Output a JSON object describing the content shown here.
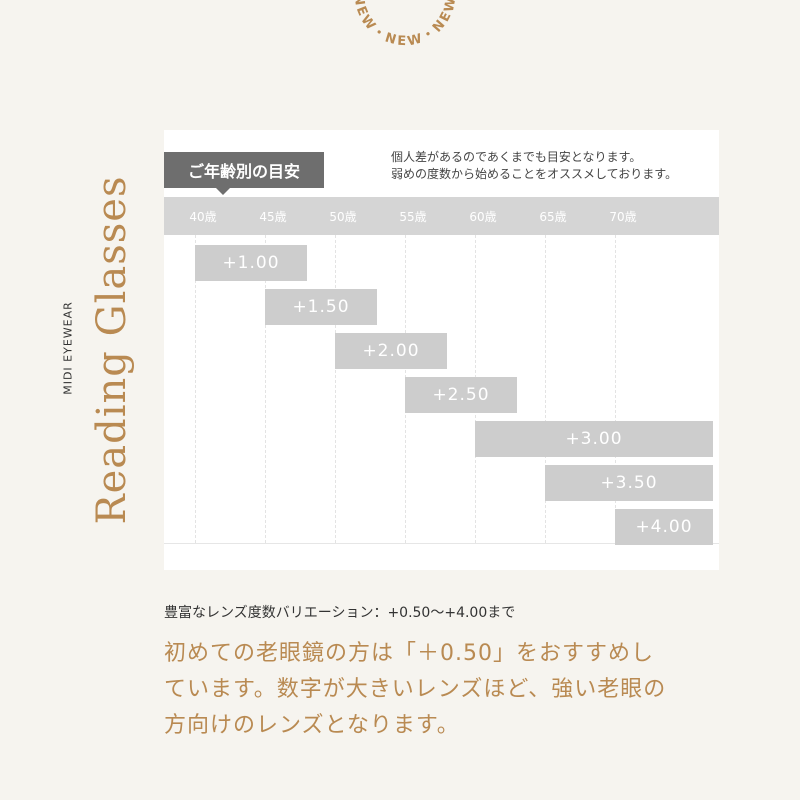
{
  "stamp": {
    "text": "NEW・NEW・NEW・NEW・"
  },
  "side": {
    "brand": "MIDI EYEWEAR",
    "title": "Reading Glasses"
  },
  "chart": {
    "tag_label": "ご年齢別の目安",
    "note": [
      "個人差があるのであくまでも目安となります。",
      "弱めの度数から始めることをオススメしております。"
    ],
    "colors": {
      "axis": "#d5d5d5",
      "bar": "#cdcdcd",
      "accent": "#b98a52",
      "tag": "#6e6e6e"
    }
  },
  "chart_data": {
    "type": "bar",
    "categories": [
      "40歳",
      "45歳",
      "50歳",
      "55歳",
      "60歳",
      "65歳",
      "70歳"
    ],
    "series": [
      {
        "label": "+1.00",
        "start_age": 40,
        "end_age": 48
      },
      {
        "label": "+1.50",
        "start_age": 45,
        "end_age": 53
      },
      {
        "label": "+2.00",
        "start_age": 50,
        "end_age": 58
      },
      {
        "label": "+2.50",
        "start_age": 55,
        "end_age": 63
      },
      {
        "label": "+3.00",
        "start_age": 60,
        "end_age": 77
      },
      {
        "label": "+3.50",
        "start_age": 65,
        "end_age": 77
      },
      {
        "label": "+4.00",
        "start_age": 70,
        "end_age": 77
      }
    ]
  },
  "summary": "豊富なレンズ度数バリエーション：+0.50〜+4.00まで",
  "body": [
    "初めての老眼鏡の方は「＋0.50」をおすすめし",
    "ています。数字が大きいレンズほど、強い老眼の",
    "方向けのレンズとなります。"
  ]
}
